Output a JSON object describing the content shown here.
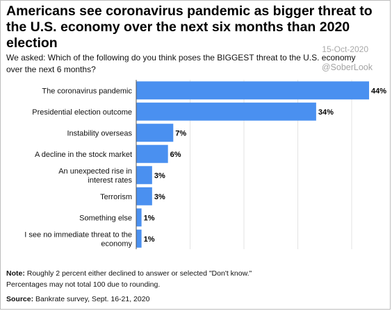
{
  "header": {
    "title": "Americans see coronavirus pandemic as bigger threat to the U.S. economy over the next six months than 2020 election",
    "subtitle": "We asked: Which of the following do you think poses the BIGGEST threat to the U.S. economy over the next 6 months?"
  },
  "watermark": {
    "date": "15-Oct-2020",
    "handle": "@SoberLook"
  },
  "chart_data": {
    "type": "bar",
    "orientation": "horizontal",
    "categories": [
      "The coronavirus pandemic",
      "Presidential election outcome",
      "Instability overseas",
      "A decline in the stock market",
      "An unexpected rise in interest rates",
      "Terrorism",
      "Something else",
      "I see no immediate threat to the economy"
    ],
    "values": [
      44,
      34,
      7,
      6,
      3,
      3,
      1,
      1
    ],
    "value_labels": [
      "44%",
      "34%",
      "7%",
      "6%",
      "3%",
      "3%",
      "1%",
      "1%"
    ],
    "xlim": [
      0,
      44
    ],
    "grid": true,
    "bar_color": "#4a90f0"
  },
  "footer": {
    "note_label": "Note:",
    "note_text": " Roughly 2 percent either declined to answer or selected \"Don't know.\"",
    "note_line2": "Percentages may not total 100 due to rounding.",
    "source_label": "Source:",
    "source_text": " Bankrate survey, Sept. 16-21, 2020"
  }
}
